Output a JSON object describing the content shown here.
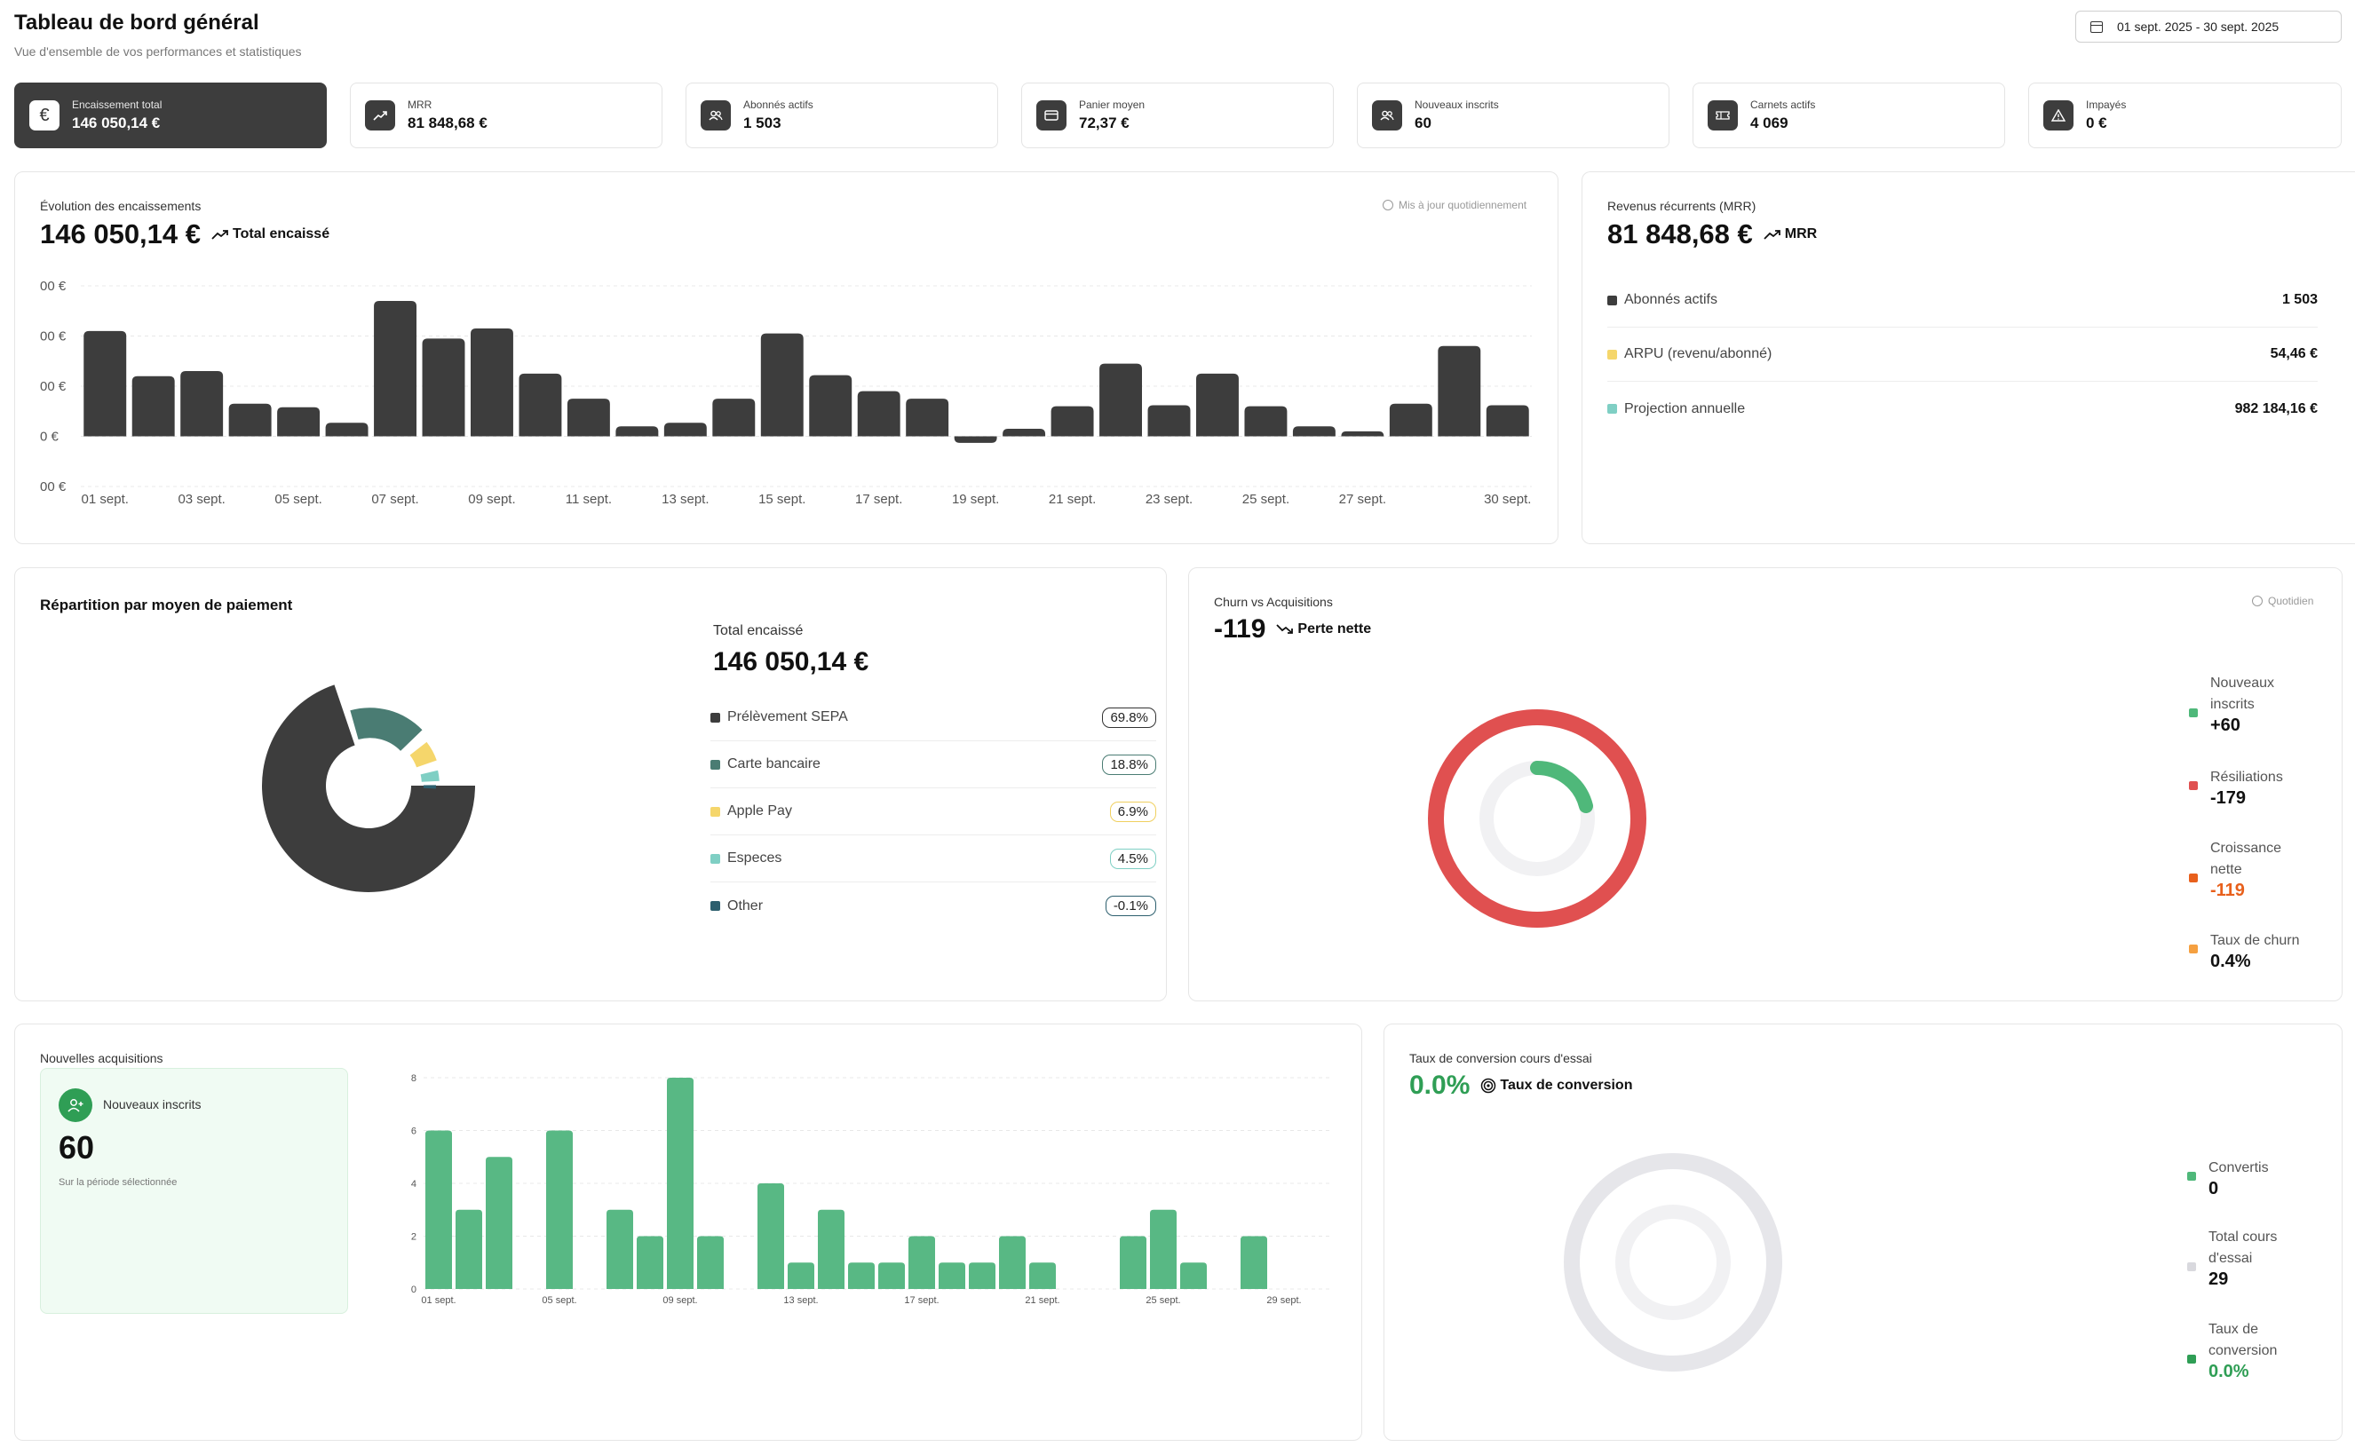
{
  "header": {
    "title": "Tableau de bord général",
    "subtitle": "Vue d'ensemble de vos performances et statistiques",
    "date_range": "01 sept. 2025 - 30 sept. 2025"
  },
  "kpis": [
    {
      "label": "Encaissement total",
      "value": "146 050,14 €",
      "icon": "euro-icon"
    },
    {
      "label": "MRR",
      "value": "81 848,68 €",
      "icon": "trend-up-icon"
    },
    {
      "label": "Abonnés actifs",
      "value": "1 503",
      "icon": "users-icon"
    },
    {
      "label": "Panier moyen",
      "value": "72,37 €",
      "icon": "card-icon"
    },
    {
      "label": "Nouveaux inscrits",
      "value": "60",
      "icon": "users-icon"
    },
    {
      "label": "Carnets actifs",
      "value": "4 069",
      "icon": "ticket-icon"
    },
    {
      "label": "Impayés",
      "value": "0 €",
      "icon": "warning-icon"
    }
  ],
  "encaissements": {
    "title": "Évolution des encaissements",
    "value": "146 050,14 €",
    "tag": "Total encaissé",
    "updated": "Mis à jour quotidiennement"
  },
  "mrr": {
    "title": "Revenus récurrents (MRR)",
    "value": "81 848,68 €",
    "tag": "MRR",
    "rows": [
      {
        "label": "Abonnés actifs",
        "value": "1 503",
        "color": "#3d3d3d"
      },
      {
        "label": "ARPU (revenu/abonné)",
        "value": "54,46 €",
        "color": "#f5d66b"
      },
      {
        "label": "Projection annuelle",
        "value": "982 184,16 €",
        "color": "#7fcfc4"
      }
    ]
  },
  "payments": {
    "title": "Répartition par moyen de paiement",
    "total_label": "Total encaissé",
    "total_value": "146 050,14 €",
    "rows": [
      {
        "label": "Prélèvement SEPA",
        "pct": "69.8%",
        "color": "#3d3d3d"
      },
      {
        "label": "Carte bancaire",
        "pct": "18.8%",
        "color": "#4a7c73"
      },
      {
        "label": "Apple Pay",
        "pct": "6.9%",
        "color": "#f5d66b"
      },
      {
        "label": "Especes",
        "pct": "4.5%",
        "color": "#7fcfc4"
      },
      {
        "label": "Other",
        "pct": "-0.1%",
        "color": "#2d5f6e"
      }
    ]
  },
  "churn": {
    "title": "Churn vs Acquisitions",
    "value": "-119",
    "tag": "Perte nette",
    "updated": "Quotidien",
    "legend": [
      {
        "label_lines": [
          "Nouveaux",
          "inscrits"
        ],
        "value": "+60",
        "color": "#4fb87a",
        "value_color": "#111111"
      },
      {
        "label_lines": [
          "Résiliations"
        ],
        "value": "-179",
        "color": "#e05050",
        "value_color": "#111111"
      },
      {
        "label_lines": [
          "Croissance",
          "nette"
        ],
        "value": "-119",
        "color": "#e8601c",
        "value_color": "#e8601c"
      },
      {
        "label_lines": [
          "Taux de churn"
        ],
        "value": "0.4%",
        "color": "#f5a040",
        "value_color": "#111111"
      }
    ]
  },
  "acquisitions": {
    "title": "Nouvelles acquisitions",
    "box_title": "Nouveaux inscrits",
    "box_value": "60",
    "box_sub": "Sur la période sélectionnée"
  },
  "conversion": {
    "title": "Taux de conversion cours d'essai",
    "value": "0.0%",
    "tag": "Taux de conversion",
    "legend": [
      {
        "label_lines": [
          "Convertis"
        ],
        "value": "0",
        "color": "#4fb87a",
        "value_color": "#111111"
      },
      {
        "label_lines": [
          "Total cours",
          "d'essai"
        ],
        "value": "29",
        "color": "#d9d9de",
        "value_color": "#111111"
      },
      {
        "label_lines": [
          "Taux de",
          "conversion"
        ],
        "value": "0.0%",
        "color": "#2f9e55",
        "value_color": "#2f9e55"
      }
    ]
  },
  "chart_data": [
    {
      "type": "bar",
      "name": "encaissements",
      "x_tick_labels": [
        "01 sept.",
        "03 sept.",
        "05 sept.",
        "07 sept.",
        "09 sept.",
        "11 sept.",
        "13 sept.",
        "15 sept.",
        "17 sept.",
        "19 sept.",
        "21 sept.",
        "23 sept.",
        "25 sept.",
        "27 sept.",
        "30 sept."
      ],
      "y_tick_labels": [
        "00 €",
        "00 €",
        "00 €",
        "0 €",
        "00 €"
      ],
      "values": [
        2.1,
        1.2,
        1.3,
        0.65,
        0.58,
        0.27,
        2.7,
        1.95,
        2.15,
        1.25,
        0.75,
        0.2,
        0.27,
        0.75,
        2.05,
        1.22,
        0.9,
        0.75,
        -0.13,
        0.15,
        0.6,
        1.45,
        0.62,
        1.25,
        0.6,
        0.2,
        0.1,
        0.65,
        1.8,
        0.62
      ],
      "ylim": [
        -1,
        3
      ],
      "grid": true
    },
    {
      "type": "bar",
      "name": "nouvelles-acquisitions",
      "x_tick_labels": [
        "01 sept.",
        "05 sept.",
        "09 sept.",
        "13 sept.",
        "17 sept.",
        "21 sept.",
        "25 sept.",
        "29 sept."
      ],
      "y_ticks": [
        0,
        2,
        4,
        6,
        8
      ],
      "values": [
        6,
        3,
        5,
        0,
        6,
        0,
        3,
        2,
        8,
        2,
        0,
        4,
        1,
        3,
        1,
        1,
        2,
        1,
        1,
        2,
        1,
        0,
        0,
        2,
        3,
        1,
        0,
        2,
        0
      ],
      "ylim": [
        0,
        8
      ],
      "grid": true
    },
    {
      "type": "pie",
      "name": "repartition-paiement",
      "labels": [
        "Prélèvement SEPA",
        "Carte bancaire",
        "Apple Pay",
        "Especes",
        "Other"
      ],
      "values": [
        69.8,
        18.8,
        6.9,
        4.5,
        -0.1
      ]
    }
  ]
}
